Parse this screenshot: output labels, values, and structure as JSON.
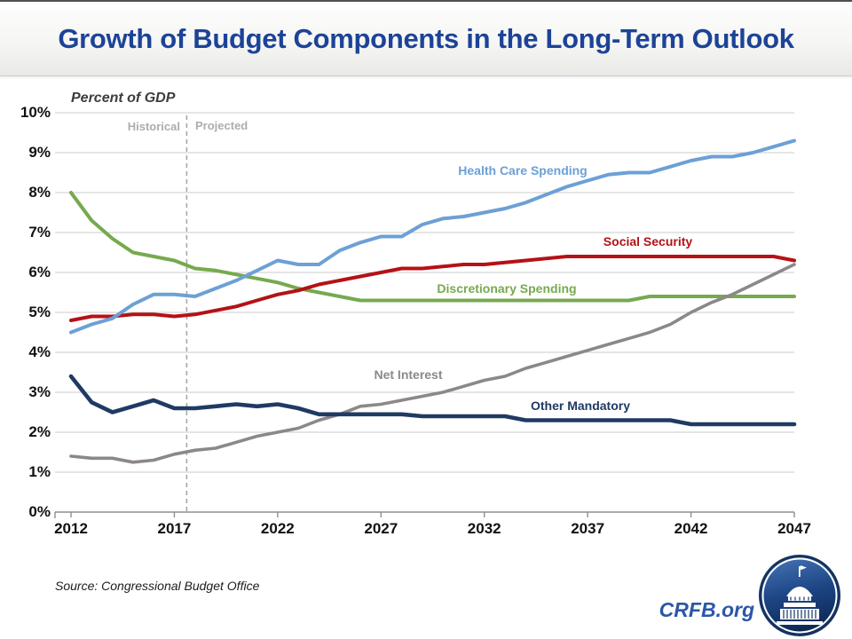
{
  "header": {
    "title": "Growth of Budget Components in the Long-Term Outlook"
  },
  "chart": {
    "axis_title": "Percent of GDP",
    "region_labels": {
      "historical": "Historical",
      "projected": "Projected"
    },
    "y_tick_labels": [
      "10%",
      "9%",
      "8%",
      "7%",
      "6%",
      "5%",
      "4%",
      "3%",
      "2%",
      "1%",
      "0%"
    ],
    "x_tick_labels": [
      "2012",
      "2017",
      "2022",
      "2027",
      "2032",
      "2037",
      "2042",
      "2047"
    ]
  },
  "chart_data": {
    "type": "line",
    "title": "Growth of Budget Components in the Long-Term Outlook",
    "ylabel": "Percent of GDP",
    "ylim": [
      0,
      10
    ],
    "grid": true,
    "divider_year": 2017.6,
    "x": [
      2012,
      2013,
      2014,
      2015,
      2016,
      2017,
      2018,
      2019,
      2020,
      2021,
      2022,
      2023,
      2024,
      2025,
      2026,
      2027,
      2028,
      2029,
      2030,
      2031,
      2032,
      2033,
      2034,
      2035,
      2036,
      2037,
      2038,
      2039,
      2040,
      2041,
      2042,
      2043,
      2044,
      2045,
      2046,
      2047
    ],
    "series": [
      {
        "name": "Health Care Spending",
        "color": "#6ca0d6",
        "values": [
          4.5,
          4.7,
          4.85,
          5.2,
          5.45,
          5.45,
          5.4,
          5.6,
          5.8,
          6.05,
          6.3,
          6.2,
          6.2,
          6.55,
          6.75,
          6.9,
          6.9,
          7.2,
          7.35,
          7.4,
          7.5,
          7.6,
          7.75,
          7.95,
          8.15,
          8.3,
          8.45,
          8.5,
          8.5,
          8.65,
          8.8,
          8.9,
          8.9,
          9.0,
          9.15,
          9.3
        ]
      },
      {
        "name": "Social Security",
        "color": "#b41216",
        "values": [
          4.8,
          4.9,
          4.9,
          4.95,
          4.95,
          4.9,
          4.95,
          5.05,
          5.15,
          5.3,
          5.45,
          5.55,
          5.7,
          5.8,
          5.9,
          6.0,
          6.1,
          6.1,
          6.15,
          6.2,
          6.2,
          6.25,
          6.3,
          6.35,
          6.4,
          6.4,
          6.4,
          6.4,
          6.4,
          6.4,
          6.4,
          6.4,
          6.4,
          6.4,
          6.4,
          6.3
        ]
      },
      {
        "name": "Discretionary Spending",
        "color": "#77a94f",
        "values": [
          8.0,
          7.3,
          6.85,
          6.5,
          6.4,
          6.3,
          6.1,
          6.05,
          5.95,
          5.85,
          5.75,
          5.6,
          5.5,
          5.4,
          5.3,
          5.3,
          5.3,
          5.3,
          5.3,
          5.3,
          5.3,
          5.3,
          5.3,
          5.3,
          5.3,
          5.3,
          5.3,
          5.3,
          5.4,
          5.4,
          5.4,
          5.4,
          5.4,
          5.4,
          5.4,
          5.4
        ]
      },
      {
        "name": "Net Interest",
        "color": "#8c8887",
        "values": [
          1.4,
          1.35,
          1.35,
          1.25,
          1.3,
          1.45,
          1.55,
          1.6,
          1.75,
          1.9,
          2.0,
          2.1,
          2.3,
          2.45,
          2.65,
          2.7,
          2.8,
          2.9,
          3.0,
          3.15,
          3.3,
          3.4,
          3.6,
          3.75,
          3.9,
          4.05,
          4.2,
          4.35,
          4.5,
          4.7,
          5.0,
          5.25,
          5.45,
          5.7,
          5.95,
          6.2
        ]
      },
      {
        "name": "Other Mandatory",
        "color": "#1f3a63",
        "values": [
          3.4,
          2.75,
          2.5,
          2.65,
          2.8,
          2.6,
          2.6,
          2.65,
          2.7,
          2.65,
          2.7,
          2.6,
          2.45,
          2.45,
          2.45,
          2.45,
          2.45,
          2.4,
          2.4,
          2.4,
          2.4,
          2.4,
          2.3,
          2.3,
          2.3,
          2.3,
          2.3,
          2.3,
          2.3,
          2.3,
          2.2,
          2.2,
          2.2,
          2.2,
          2.2,
          2.2
        ]
      }
    ]
  },
  "footer": {
    "source": "Source: Congressional Budget Office",
    "site": "CRFB.org"
  }
}
